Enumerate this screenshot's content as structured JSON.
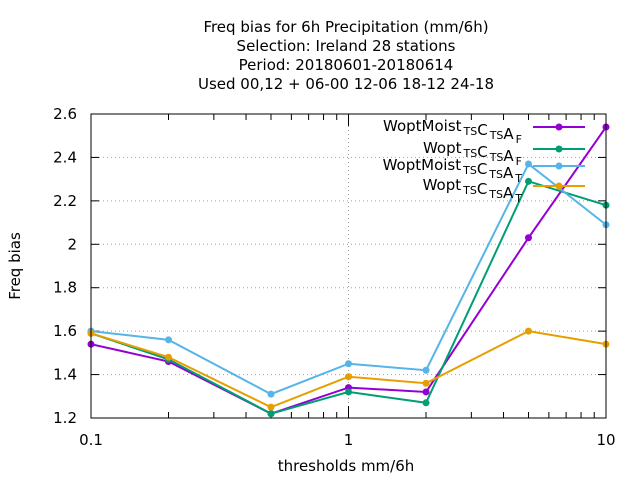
{
  "chart_data": {
    "type": "line",
    "title_lines": [
      "Freq bias  for 6h Precipitation (mm/6h)",
      "Selection: Ireland      28 stations",
      "Period: 20180601-20180614",
      "Used  00,12  + 06-00 12-06 18-12 24-18"
    ],
    "xlabel": "thresholds mm/6h",
    "ylabel": "Freq bias",
    "xscale": "log",
    "xlim": [
      0.1,
      10
    ],
    "ylim": [
      1.2,
      2.6
    ],
    "xticks": [
      0.1,
      1,
      10
    ],
    "xtick_labels": [
      "0.1",
      "1",
      "10"
    ],
    "yticks": [
      1.2,
      1.4,
      1.6,
      1.8,
      2,
      2.2,
      2.4,
      2.6
    ],
    "ytick_labels": [
      "1.2",
      "1.4",
      "1.6",
      "1.8",
      "2",
      "2.2",
      "2.4",
      "2.6"
    ],
    "grid": true,
    "legend_position": "top-right",
    "x": [
      0.1,
      0.2,
      0.5,
      1,
      2,
      5,
      10
    ],
    "series": [
      {
        "name": "WoptMoist",
        "sub1": "TS",
        "mid": "C",
        "sub2": "TS",
        "tail": "A",
        "sub3": "F",
        "color": "#9400d3",
        "values": [
          1.54,
          1.46,
          1.22,
          1.34,
          1.32,
          2.03,
          2.54
        ]
      },
      {
        "name": "Wopt",
        "sub1": "TS",
        "mid": "C",
        "sub2": "TS",
        "tail": "A",
        "sub3": "F",
        "color": "#009e73",
        "values": [
          1.59,
          1.47,
          1.22,
          1.32,
          1.27,
          2.29,
          2.18
        ]
      },
      {
        "name": "WoptMoist",
        "sub1": "TS",
        "mid": "C",
        "sub2": "TS",
        "tail": "A",
        "sub3": "T",
        "color": "#56b4e9",
        "values": [
          1.6,
          1.56,
          1.31,
          1.45,
          1.42,
          2.37,
          2.09
        ]
      },
      {
        "name": "Wopt",
        "sub1": "TS",
        "mid": "C",
        "sub2": "TS",
        "tail": "A",
        "sub3": "T",
        "color": "#e69f00",
        "values": [
          1.59,
          1.48,
          1.25,
          1.39,
          1.36,
          1.6,
          1.54
        ]
      }
    ]
  }
}
